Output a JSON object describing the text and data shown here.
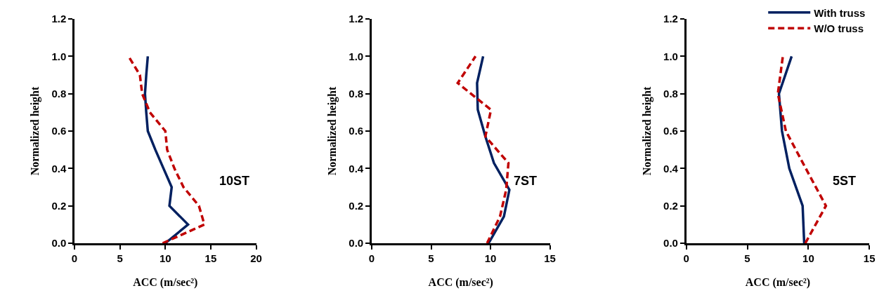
{
  "chart_data": [
    {
      "type": "line",
      "xlabel": "ACC (m/sec²)",
      "ylabel": "Normalized height",
      "annotations": [
        "10ST"
      ],
      "xlim": [
        0,
        20
      ],
      "xticks": [
        0,
        5,
        10,
        15,
        20
      ],
      "ylim": [
        0,
        1.2
      ],
      "yticks": [
        {
          "value": 0,
          "label": "0.0"
        },
        {
          "value": 0.2,
          "label": "0.2"
        },
        {
          "value": 0.4,
          "label": "0.4"
        },
        {
          "value": 0.6,
          "label": "0.6"
        },
        {
          "value": 0.8,
          "label": "0.8"
        },
        {
          "value": 1.0,
          "label": "1.0"
        },
        {
          "value": 1.2,
          "label": "1.2"
        }
      ],
      "grid": false,
      "legend": false,
      "marker": "none",
      "series": [
        {
          "color": "#002060",
          "line_style": "solid",
          "x": [
            10.0,
            12.5,
            10.45,
            10.7,
            9.8,
            8.9,
            8.07,
            7.9,
            7.76,
            7.9,
            8.07
          ],
          "values": [
            0,
            0.1,
            0.2,
            0.3,
            0.4,
            0.5,
            0.6,
            0.7,
            0.8,
            0.9,
            1.0
          ]
        },
        {
          "color": "#c00000",
          "line_style": "dashed",
          "x": [
            9.7,
            14.3,
            13.7,
            12.0,
            11.0,
            10.2,
            10.0,
            8.3,
            7.45,
            7.2,
            5.95
          ],
          "values": [
            0,
            0.1,
            0.2,
            0.3,
            0.4,
            0.5,
            0.6,
            0.7,
            0.8,
            0.9,
            1.0
          ]
        }
      ]
    },
    {
      "type": "line",
      "xlabel": "ACC (m/sec²)",
      "ylabel": "Normalized height",
      "annotations": [
        "7ST"
      ],
      "xlim": [
        0,
        15
      ],
      "xticks": [
        0,
        5,
        10,
        15
      ],
      "ylim": [
        0,
        1.2
      ],
      "yticks": [
        {
          "value": 0,
          "label": "0.0"
        },
        {
          "value": 0.2,
          "label": "0.2"
        },
        {
          "value": 0.4,
          "label": "0.4"
        },
        {
          "value": 0.6,
          "label": "0.6"
        },
        {
          "value": 0.8,
          "label": "0.8"
        },
        {
          "value": 1.0,
          "label": "1.0"
        },
        {
          "value": 1.2,
          "label": "1.2"
        }
      ],
      "grid": false,
      "legend": false,
      "marker": "none",
      "series": [
        {
          "color": "#002060",
          "line_style": "solid",
          "x": [
            9.84,
            11.13,
            11.59,
            10.29,
            9.57,
            8.93,
            8.87,
            9.38
          ],
          "values": [
            0,
            0.143,
            0.286,
            0.429,
            0.571,
            0.714,
            0.857,
            1.0
          ]
        },
        {
          "color": "#c00000",
          "line_style": "dashed",
          "x": [
            9.71,
            10.8,
            11.32,
            11.51,
            9.57,
            10.04,
            7.24,
            8.74
          ],
          "values": [
            0,
            0.143,
            0.286,
            0.429,
            0.571,
            0.714,
            0.857,
            1.0
          ]
        }
      ]
    },
    {
      "type": "line",
      "xlabel": "ACC (m/sec²)",
      "ylabel": "Normalized height",
      "annotations": [
        "5ST"
      ],
      "xlim": [
        0,
        15
      ],
      "xticks": [
        0,
        5,
        10,
        15
      ],
      "ylim": [
        0,
        1.2
      ],
      "yticks": [
        {
          "value": 0,
          "label": "0.0"
        },
        {
          "value": 0.2,
          "label": "0.2"
        },
        {
          "value": 0.4,
          "label": "0.4"
        },
        {
          "value": 0.6,
          "label": "0.6"
        },
        {
          "value": 0.8,
          "label": "0.8"
        },
        {
          "value": 1.0,
          "label": "1.0"
        },
        {
          "value": 1.2,
          "label": "1.2"
        }
      ],
      "grid": false,
      "legend": "top right",
      "marker": "none",
      "series": [
        {
          "name": "With truss",
          "color": "#002060",
          "line_style": "solid",
          "x": [
            9.66,
            9.53,
            8.44,
            7.84,
            7.59,
            8.63
          ],
          "values": [
            0,
            0.2,
            0.4,
            0.6,
            0.8,
            1.0
          ]
        },
        {
          "name": "W/O truss",
          "color": "#c00000",
          "line_style": "dashed",
          "x": [
            9.75,
            11.44,
            9.79,
            8.16,
            7.5,
            7.91
          ],
          "values": [
            0,
            0.2,
            0.4,
            0.6,
            0.8,
            1.0
          ]
        }
      ]
    }
  ]
}
